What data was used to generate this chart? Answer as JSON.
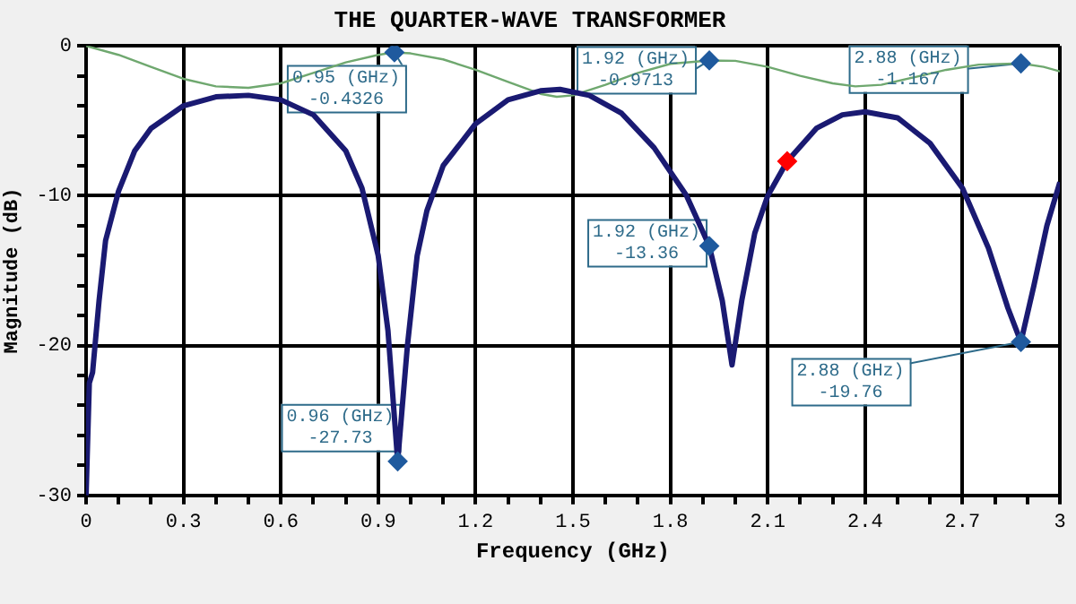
{
  "chart_data": {
    "type": "line",
    "title": "THE QUARTER-WAVE TRANSFORMER",
    "xlabel": "Frequency (GHz)",
    "ylabel": "Magnitude (dB)",
    "series": [
      {
        "type": "line",
        "marker": "none",
        "color": "#1a1a72",
        "x": [
          0,
          0.01,
          0.02,
          0.04,
          0.06,
          0.1,
          0.15,
          0.2,
          0.3,
          0.4,
          0.5,
          0.6,
          0.7,
          0.8,
          0.85,
          0.9,
          0.93,
          0.96,
          0.99,
          1.02,
          1.05,
          1.1,
          1.2,
          1.3,
          1.4,
          1.46,
          1.55,
          1.65,
          1.75,
          1.85,
          1.92,
          1.96,
          1.99,
          2.02,
          2.06,
          2.1,
          2.16,
          2.25,
          2.33,
          2.4,
          2.5,
          2.6,
          2.7,
          2.78,
          2.84,
          2.88,
          2.92,
          2.96,
          3.0
        ],
        "values": [
          -30,
          -22.5,
          -21.8,
          -17,
          -13,
          -9.7,
          -7,
          -5.5,
          -4,
          -3.4,
          -3.3,
          -3.6,
          -4.6,
          -7,
          -9.5,
          -14,
          -19,
          -27.73,
          -20,
          -14,
          -11,
          -8,
          -5.2,
          -3.6,
          -3,
          -2.9,
          -3.3,
          -4.5,
          -6.8,
          -10,
          -13.36,
          -17,
          -21.3,
          -17,
          -12.5,
          -10,
          -7.7,
          -5.5,
          -4.6,
          -4.4,
          -4.8,
          -6.5,
          -9.5,
          -13.5,
          -17.5,
          -19.76,
          -16,
          -12,
          -9.1
        ]
      },
      {
        "type": "line",
        "marker": "none",
        "color": "#6fa86f",
        "x": [
          0,
          0.1,
          0.2,
          0.3,
          0.4,
          0.5,
          0.6,
          0.7,
          0.8,
          0.9,
          0.95,
          1.0,
          1.1,
          1.2,
          1.3,
          1.4,
          1.45,
          1.5,
          1.6,
          1.7,
          1.8,
          1.92,
          2.0,
          2.1,
          2.2,
          2.3,
          2.37,
          2.45,
          2.55,
          2.65,
          2.75,
          2.88,
          2.95,
          3.0
        ],
        "values": [
          0,
          -0.6,
          -1.4,
          -2.2,
          -2.7,
          -2.8,
          -2.5,
          -1.8,
          -1.1,
          -0.6,
          -0.4326,
          -0.5,
          -0.9,
          -1.6,
          -2.4,
          -3.2,
          -3.4,
          -3.3,
          -2.6,
          -1.8,
          -1.2,
          -0.9713,
          -1,
          -1.4,
          -2,
          -2.5,
          -2.7,
          -2.6,
          -2.1,
          -1.6,
          -1.25,
          -1.167,
          -1.4,
          -1.7
        ]
      },
      {
        "type": "scatter",
        "marker": "diamond",
        "color": "#1f5a9e",
        "x": [
          0.95,
          1.92,
          2.88,
          0.96,
          1.92,
          2.88
        ],
        "values": [
          -0.4326,
          -0.9713,
          -1.167,
          -27.73,
          -13.36,
          -19.76
        ]
      },
      {
        "type": "scatter",
        "marker": "diamond",
        "color": "#ff0000",
        "x": [
          2.16
        ],
        "values": [
          -7.7
        ]
      }
    ],
    "annotations": [
      {
        "text": "0.95 (GHz)\n-0.4326",
        "x": 0.95,
        "y": -0.4326
      },
      {
        "text": "1.92 (GHz)\n-0.9713",
        "x": 1.92,
        "y": -0.9713
      },
      {
        "text": "2.88 (GHz)\n-1.167",
        "x": 2.88,
        "y": -1.167
      },
      {
        "text": "0.96 (GHz)\n-27.73",
        "x": 0.96,
        "y": -27.73
      },
      {
        "text": "1.92 (GHz)\n-13.36",
        "x": 1.92,
        "y": -13.36
      },
      {
        "text": "2.88 (GHz)\n-19.76",
        "x": 2.88,
        "y": -19.76
      }
    ],
    "xlim": [
      0,
      3
    ],
    "ylim": [
      -30,
      0
    ],
    "xticks": [
      0,
      {
        "value": 0.1,
        "label": null
      },
      {
        "value": 0.2,
        "label": null
      },
      0.3,
      {
        "value": 0.4,
        "label": null
      },
      {
        "value": 0.5,
        "label": null
      },
      0.6,
      {
        "value": 0.7,
        "label": null
      },
      {
        "value": 0.8,
        "label": null
      },
      0.9,
      {
        "value": 1.0,
        "label": null
      },
      {
        "value": 1.1,
        "label": null
      },
      1.2,
      {
        "value": 1.3,
        "label": null
      },
      {
        "value": 1.4,
        "label": null
      },
      1.5,
      {
        "value": 1.6,
        "label": null
      },
      {
        "value": 1.7,
        "label": null
      },
      1.8,
      {
        "value": 1.9,
        "label": null
      },
      {
        "value": 2.0,
        "label": null
      },
      2.1,
      {
        "value": 2.2,
        "label": null
      },
      {
        "value": 2.3,
        "label": null
      },
      2.4,
      {
        "value": 2.5,
        "label": null
      },
      {
        "value": 2.6,
        "label": null
      },
      2.7,
      {
        "value": 2.8,
        "label": null
      },
      {
        "value": 2.9,
        "label": null
      },
      3
    ],
    "yticks": [
      -30,
      {
        "value": -28,
        "label": null
      },
      {
        "value": -26,
        "label": null
      },
      {
        "value": -24,
        "label": null
      },
      {
        "value": -22,
        "label": null
      },
      -20,
      {
        "value": -18,
        "label": null
      },
      {
        "value": -16,
        "label": null
      },
      {
        "value": -14,
        "label": null
      },
      {
        "value": -12,
        "label": null
      },
      -10,
      {
        "value": -8,
        "label": null
      },
      {
        "value": -6,
        "label": null
      },
      {
        "value": -4,
        "label": null
      },
      {
        "value": -2,
        "label": null
      },
      0
    ],
    "grid": true,
    "legend": false
  }
}
